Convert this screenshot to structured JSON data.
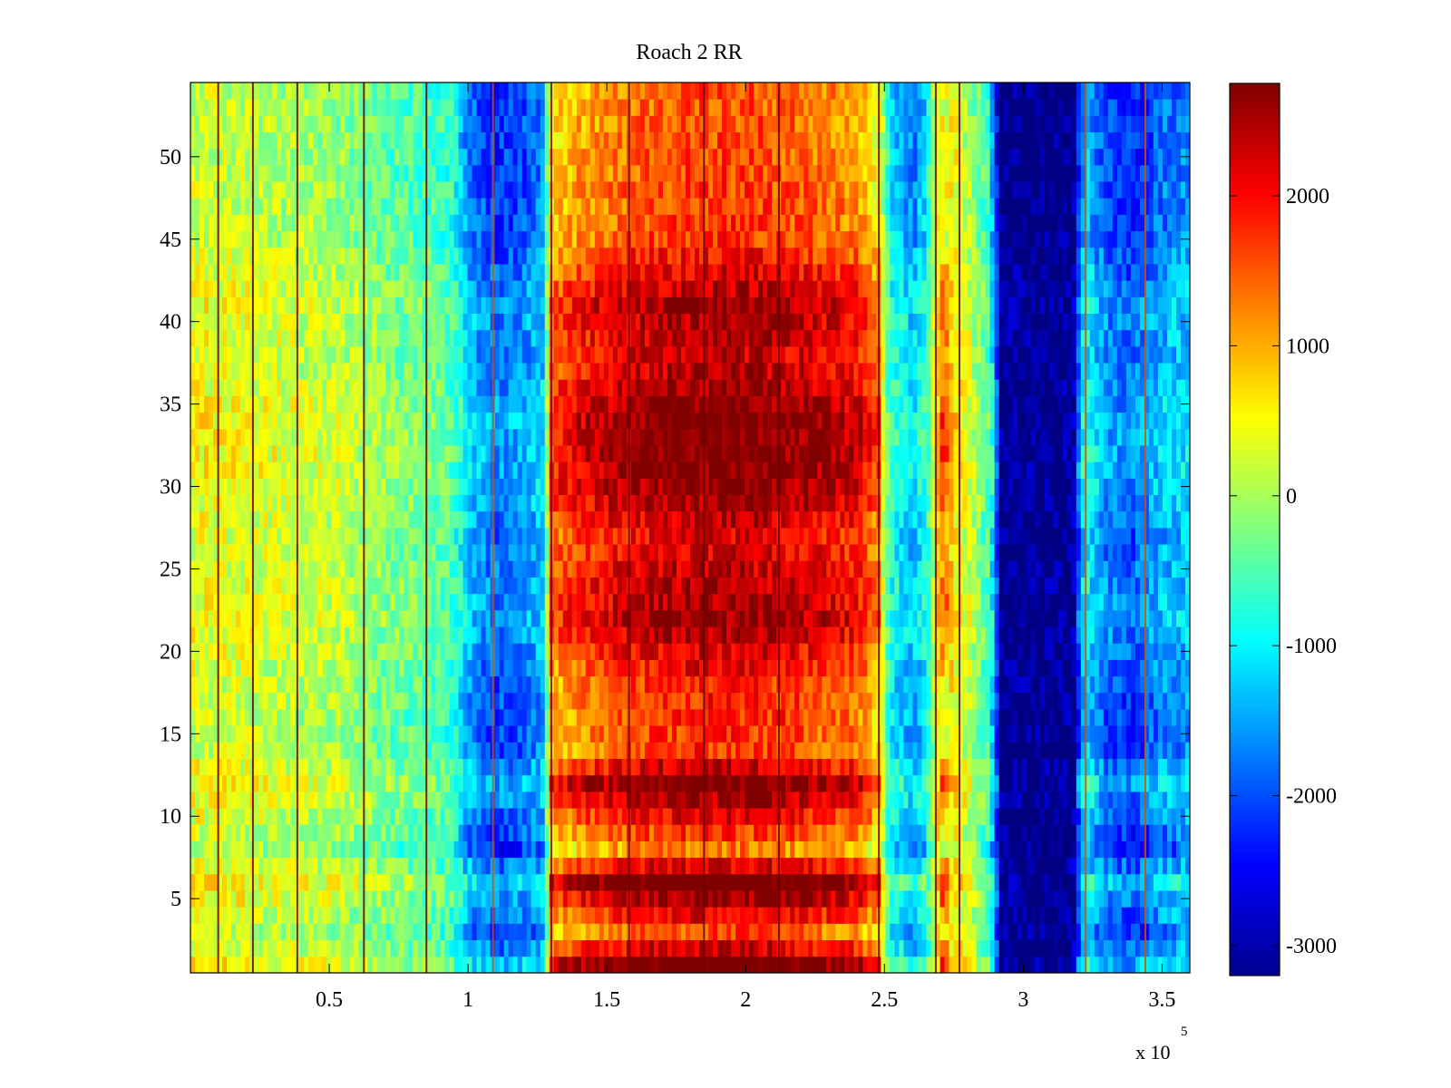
{
  "chart_data": {
    "type": "heatmap",
    "title": "Roach 2 RR",
    "xlabel": "",
    "ylabel": "",
    "xlim": [
      0,
      360000
    ],
    "ylim": [
      0.5,
      54.5
    ],
    "x_ticks": [
      50000,
      100000,
      150000,
      200000,
      250000,
      300000,
      350000
    ],
    "x_tick_labels": [
      "0.5",
      "1",
      "1.5",
      "2",
      "2.5",
      "3",
      "3.5"
    ],
    "x_exponent_label": "x 10",
    "x_exponent_power": "5",
    "y_ticks": [
      5,
      10,
      15,
      20,
      25,
      30,
      35,
      40,
      45,
      50
    ],
    "y_tick_labels": [
      "5",
      "10",
      "15",
      "20",
      "25",
      "30",
      "35",
      "40",
      "45",
      "50"
    ],
    "colormap": "jet",
    "colorbar": {
      "clim": [
        -3200,
        2750
      ],
      "ticks": [
        -3000,
        -2000,
        -1000,
        0,
        1000,
        2000
      ],
      "tick_labels": [
        "-3000",
        "-2000",
        "-1000",
        "0",
        "1000",
        "2000"
      ],
      "placement": "right"
    },
    "rows": 54,
    "column_profile": {
      "x": [
        0,
        10000,
        20000,
        30000,
        40000,
        50000,
        60000,
        70000,
        80000,
        90000,
        95000,
        100000,
        105000,
        110000,
        120000,
        127000,
        130000,
        140000,
        160000,
        180000,
        200000,
        220000,
        240000,
        248000,
        252000,
        260000,
        265000,
        270000,
        280000,
        288000,
        292000,
        300000,
        310000,
        318000,
        322000,
        330000,
        340000,
        350000,
        360000
      ],
      "value": [
        300,
        300,
        250,
        150,
        100,
        50,
        -100,
        -300,
        -400,
        -500,
        -700,
        -1500,
        -1800,
        -2000,
        -1800,
        -1500,
        1000,
        1400,
        1800,
        2000,
        2000,
        1800,
        1500,
        800,
        -900,
        -1500,
        -1000,
        900,
        200,
        -700,
        -3150,
        -3150,
        -3150,
        -3100,
        -1100,
        -1900,
        -2100,
        -1600,
        -1500
      ]
    },
    "row_modulation": {
      "row": [
        1,
        3,
        6,
        8,
        12,
        14,
        18,
        22,
        27,
        30,
        34,
        38,
        41,
        45,
        50,
        54
      ],
      "value": [
        800,
        -300,
        900,
        -500,
        700,
        -200,
        -100,
        500,
        150,
        600,
        700,
        250,
        500,
        -200,
        -300,
        -350
      ]
    },
    "vertical_lines_x": [
      10000,
      22500,
      38500,
      62500,
      85000,
      109000,
      130000,
      158000,
      185000,
      212000,
      248000,
      268500,
      277000,
      322500,
      344000
    ]
  }
}
